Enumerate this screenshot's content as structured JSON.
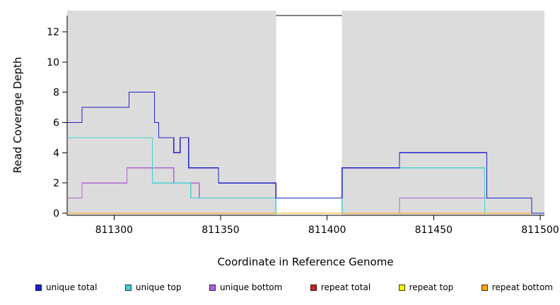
{
  "figure": {
    "background": "#FFFFFF"
  },
  "chart_data": {
    "type": "line",
    "style": "step",
    "title": "",
    "xlabel": "Coordinate in Reference Genome",
    "ylabel": "Read Coverage Depth",
    "xlim": [
      811278,
      811502
    ],
    "ylim": [
      0,
      13
    ],
    "x_ticks": [
      811300,
      811350,
      811400,
      811450,
      811500
    ],
    "y_ticks": [
      0,
      2,
      4,
      6,
      8,
      10,
      12
    ],
    "grid": false,
    "background_shading": {
      "color": "#DCDCDC",
      "regions": [
        [
          811278,
          811376
        ],
        [
          811407,
          811502
        ]
      ]
    },
    "series": [
      {
        "name": "repeat total",
        "color": "#CC2222",
        "points": [
          [
            811278,
            0
          ],
          [
            811502,
            0
          ]
        ]
      },
      {
        "name": "repeat top",
        "color": "#F5F500",
        "points": [
          [
            811278,
            0
          ],
          [
            811502,
            0
          ]
        ]
      },
      {
        "name": "unique bottom",
        "color": "#AF63CF",
        "points": [
          [
            811278,
            1
          ],
          [
            811285,
            2
          ],
          [
            811306,
            3
          ],
          [
            811328,
            2
          ],
          [
            811340,
            1
          ],
          [
            811376,
            0
          ],
          [
            811434,
            1
          ],
          [
            811496,
            0
          ],
          [
            811502,
            0
          ]
        ]
      },
      {
        "name": "unique top",
        "color": "#46CFCF",
        "points": [
          [
            811278,
            5
          ],
          [
            811318,
            2
          ],
          [
            811336,
            1
          ],
          [
            811376,
            0
          ],
          [
            811407,
            3
          ],
          [
            811474,
            0
          ],
          [
            811502,
            0
          ]
        ]
      },
      {
        "name": "repeat bottom",
        "color": "#FFA500",
        "points": [
          [
            811278,
            0
          ],
          [
            811502,
            0
          ]
        ]
      },
      {
        "name": "unique total",
        "color": "#2020CD",
        "points": [
          [
            811278,
            6
          ],
          [
            811285,
            7
          ],
          [
            811307,
            8
          ],
          [
            811319,
            6
          ],
          [
            811321,
            5
          ],
          [
            811328,
            4
          ],
          [
            811331,
            5
          ],
          [
            811335,
            3
          ],
          [
            811349,
            2
          ],
          [
            811376,
            1
          ],
          [
            811407,
            3
          ],
          [
            811434,
            4
          ],
          [
            811475,
            1
          ],
          [
            811496,
            0
          ],
          [
            811502,
            0
          ]
        ]
      }
    ],
    "legend": {
      "position": "bottom",
      "order": [
        "unique total",
        "unique top",
        "unique bottom",
        "repeat total",
        "repeat top",
        "repeat bottom"
      ]
    }
  }
}
